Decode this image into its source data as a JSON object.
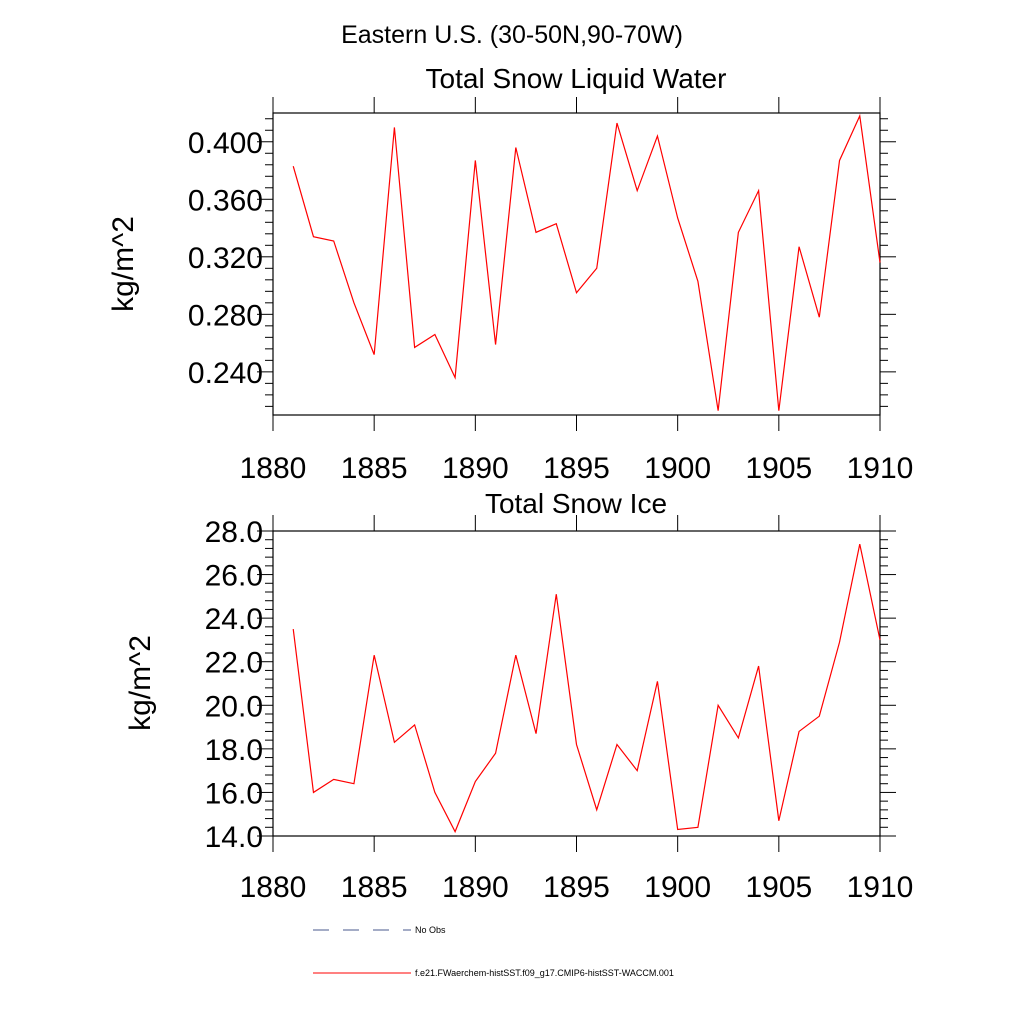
{
  "figure": {
    "title": "Eastern U.S. (30-50N,90-70W)"
  },
  "chart_data": [
    {
      "type": "line",
      "title": "Total Snow Liquid Water",
      "xlabel": "",
      "ylabel": "kg/m^2",
      "xlim": [
        1880,
        1910
      ],
      "ylim": [
        0.21,
        0.42
      ],
      "xticks": [
        "1880",
        "1885",
        "1890",
        "1895",
        "1900",
        "1905",
        "1910"
      ],
      "yticks": [
        "0.240",
        "0.280",
        "0.320",
        "0.360",
        "0.400"
      ],
      "series": [
        {
          "name": "f.e21.FWaerchem-histSST.f09_g17.CMIP6-histSST-WACCM.001",
          "color": "#ff0000",
          "x": [
            1881,
            1882,
            1883,
            1884,
            1885,
            1886,
            1887,
            1888,
            1889,
            1890,
            1891,
            1892,
            1893,
            1894,
            1895,
            1896,
            1897,
            1898,
            1899,
            1900,
            1901,
            1902,
            1903,
            1904,
            1905,
            1906,
            1907,
            1908,
            1909,
            1910
          ],
          "y": [
            0.383,
            0.334,
            0.331,
            0.288,
            0.252,
            0.41,
            0.257,
            0.266,
            0.236,
            0.387,
            0.259,
            0.396,
            0.337,
            0.343,
            0.295,
            0.312,
            0.413,
            0.366,
            0.404,
            0.347,
            0.303,
            0.213,
            0.337,
            0.366,
            0.213,
            0.327,
            0.278,
            0.387,
            0.418,
            0.316
          ]
        }
      ]
    },
    {
      "type": "line",
      "title": "Total Snow Ice",
      "xlabel": "",
      "ylabel": "kg/m^2",
      "xlim": [
        1880,
        1910
      ],
      "ylim": [
        14.0,
        28.0
      ],
      "xticks": [
        "1880",
        "1885",
        "1890",
        "1895",
        "1900",
        "1905",
        "1910"
      ],
      "yticks": [
        "14.0",
        "16.0",
        "18.0",
        "20.0",
        "22.0",
        "24.0",
        "26.0",
        "28.0"
      ],
      "series": [
        {
          "name": "f.e21.FWaerchem-histSST.f09_g17.CMIP6-histSST-WACCM.001",
          "color": "#ff0000",
          "x": [
            1881,
            1882,
            1883,
            1884,
            1885,
            1886,
            1887,
            1888,
            1889,
            1890,
            1891,
            1892,
            1893,
            1894,
            1895,
            1896,
            1897,
            1898,
            1899,
            1900,
            1901,
            1902,
            1903,
            1904,
            1905,
            1906,
            1907,
            1908,
            1909,
            1910
          ],
          "y": [
            23.5,
            16.0,
            16.6,
            16.4,
            22.3,
            18.3,
            19.1,
            16.0,
            14.2,
            16.5,
            17.8,
            22.3,
            18.7,
            25.1,
            18.2,
            15.2,
            18.2,
            17.0,
            21.1,
            14.3,
            14.4,
            20.0,
            18.5,
            21.8,
            14.7,
            18.8,
            19.5,
            22.9,
            27.4,
            23.0
          ]
        }
      ]
    }
  ],
  "legend": [
    {
      "label": "No Obs",
      "color": "#4a5a8c",
      "dash": "dashed"
    },
    {
      "label": "f.e21.FWaerchem-histSST.f09_g17.CMIP6-histSST-WACCM.001",
      "color": "#ff0000",
      "dash": "solid"
    }
  ]
}
